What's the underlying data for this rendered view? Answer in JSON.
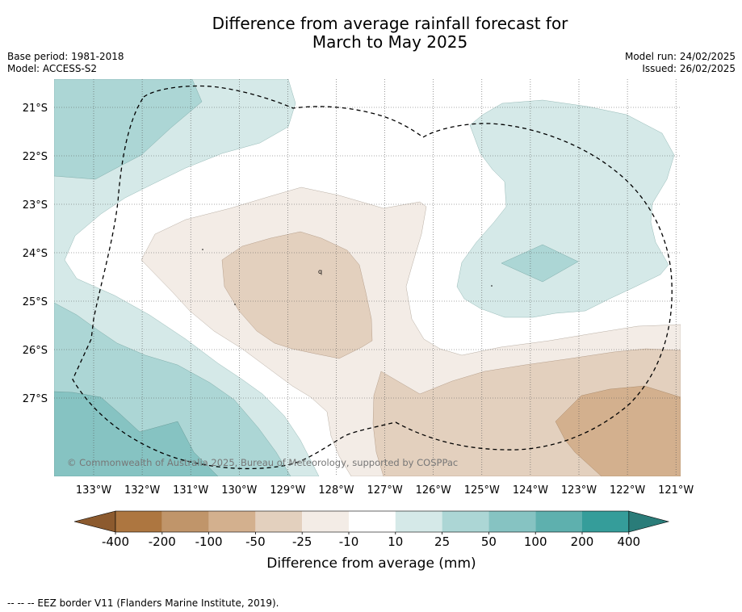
{
  "title_line1": "Difference from average rainfall forecast for",
  "title_line2": "March to May 2025",
  "meta_left": {
    "base_period": "Base period: 1981-2018",
    "model": "Model: ACCESS-S2"
  },
  "meta_right": {
    "model_run": "Model run: 24/02/2025",
    "issued": "Issued: 26/02/2025"
  },
  "map": {
    "lat_labels": [
      "21°S",
      "22°S",
      "23°S",
      "24°S",
      "25°S",
      "26°S",
      "27°S"
    ],
    "lon_labels": [
      "133°W",
      "132°W",
      "131°W",
      "130°W",
      "129°W",
      "128°W",
      "127°W",
      "126°W",
      "125°W",
      "124°W",
      "123°W",
      "122°W",
      "121°W"
    ],
    "copyright": "© Commonwealth of Australia 2025, Bureau of Meteorology, supported by COSPPac",
    "contour_label": "q"
  },
  "colorbar": {
    "ticks": [
      "-400",
      "-200",
      "-100",
      "-50",
      "-25",
      "-10",
      "10",
      "25",
      "50",
      "100",
      "200",
      "400"
    ],
    "colors": [
      "#8c5a2e",
      "#ad7640",
      "#c0956a",
      "#d3b08e",
      "#e3d0be",
      "#f3ece6",
      "#ffffff",
      "#d5e9e8",
      "#acd6d5",
      "#86c3c2",
      "#5eb0ae",
      "#359d9a",
      "#2a7c79"
    ],
    "label": "Difference from average (mm)"
  },
  "footer": "--  --  -- EEZ border V11 (Flanders Marine Institute, 2019)."
}
